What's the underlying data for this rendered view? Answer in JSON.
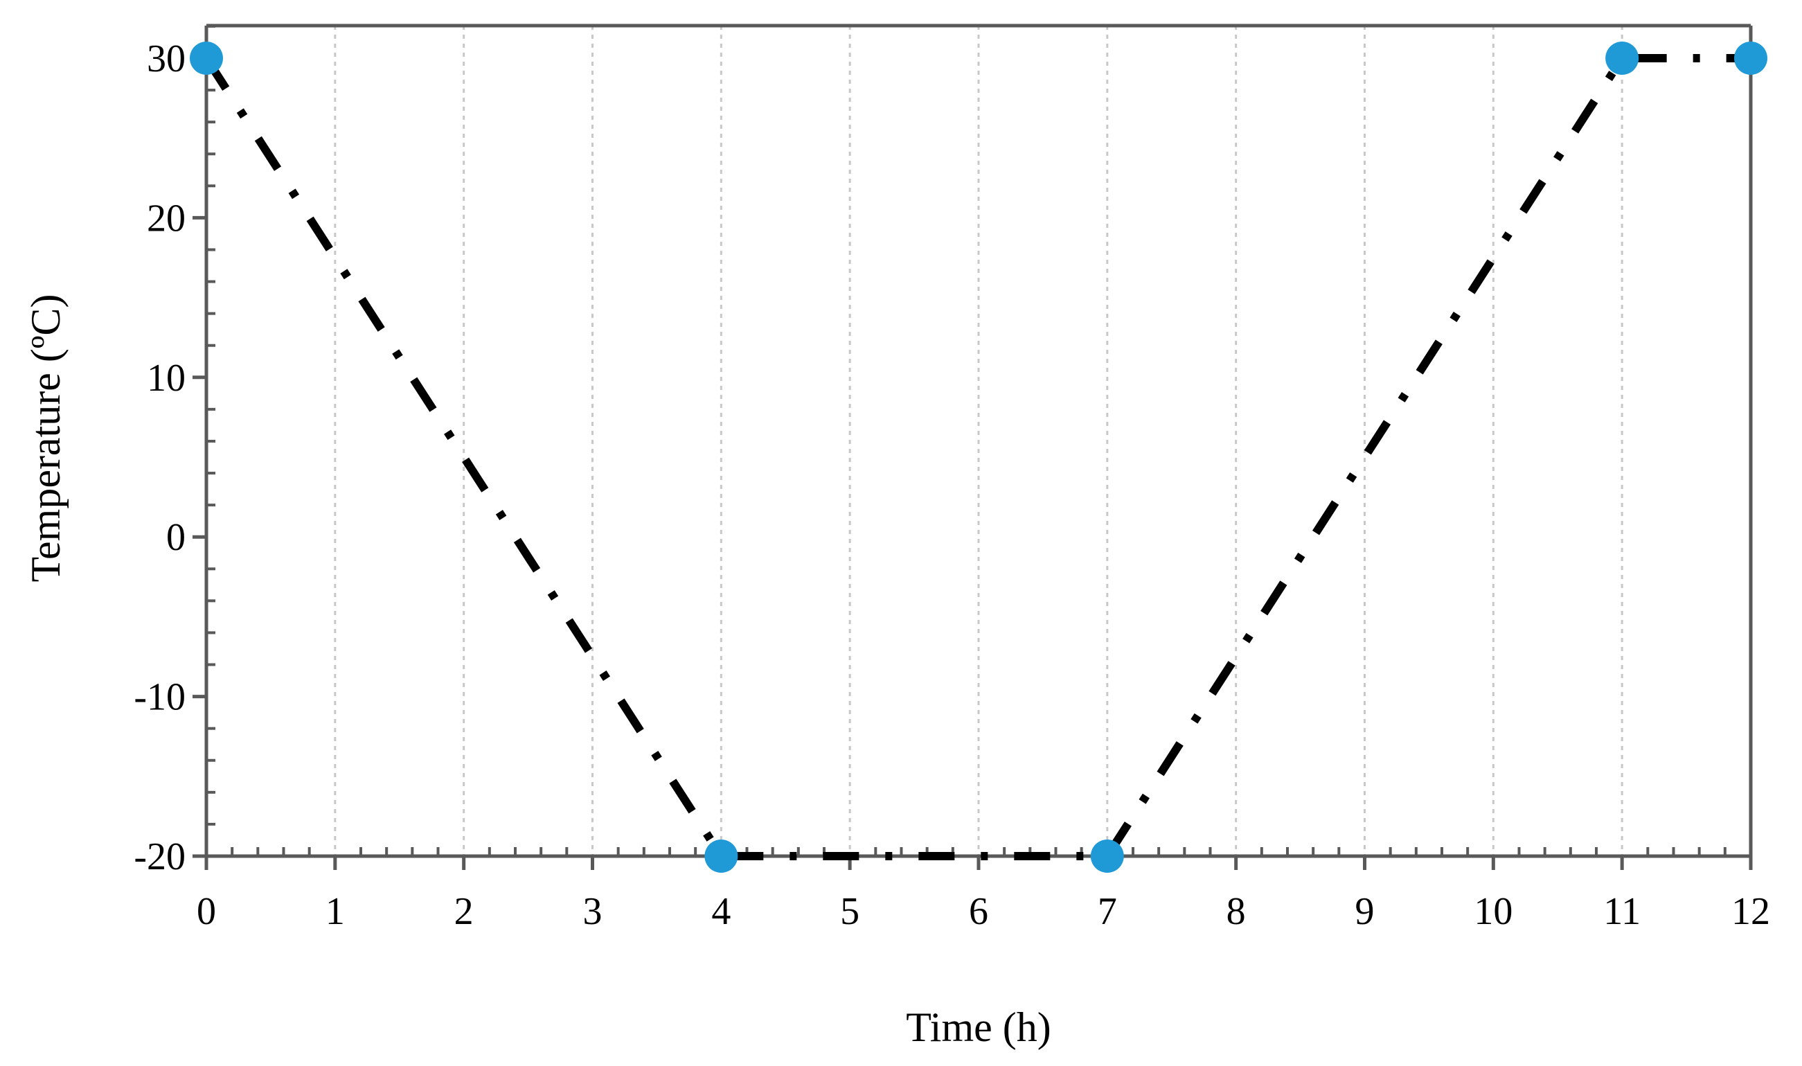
{
  "chart_data": {
    "type": "line",
    "title": "",
    "xlabel": "Time (h)",
    "ylabel": "Temperature (ºC)",
    "xlim": [
      0,
      12
    ],
    "ylim": [
      -20,
      30
    ],
    "xticks": [
      "0",
      "1",
      "2",
      "3",
      "4",
      "5",
      "6",
      "7",
      "8",
      "9",
      "10",
      "11",
      "12"
    ],
    "yticks": [
      "-20",
      "-10",
      "0",
      "10",
      "20",
      "30"
    ],
    "grid": "vertical dotted",
    "legend": "none",
    "series": [
      {
        "x": [
          0,
          4,
          7,
          11,
          12
        ],
        "y": [
          30,
          -20,
          -20,
          30,
          30
        ],
        "line_style": "dash-dot",
        "line_color": "#000000",
        "marker_color": "#1f9ad6"
      }
    ]
  }
}
